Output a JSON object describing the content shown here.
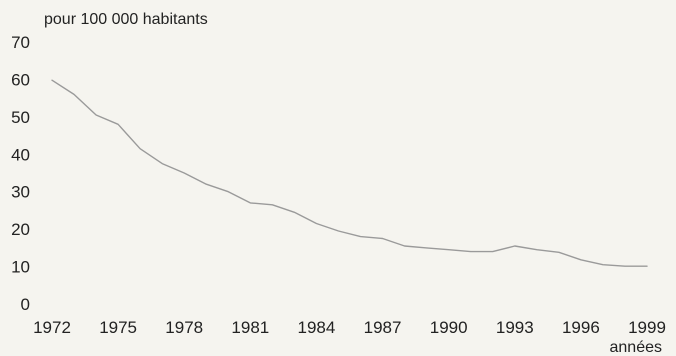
{
  "chart_data": {
    "type": "line",
    "title": "",
    "ylabel": "pour 100 000 habitants",
    "xlabel": "années",
    "xlim": [
      1972,
      1999
    ],
    "ylim": [
      0,
      70
    ],
    "x_ticks": [
      "1972",
      "1975",
      "1978",
      "1981",
      "1984",
      "1987",
      "1990",
      "1993",
      "1996",
      "1999"
    ],
    "y_ticks": [
      "0",
      "10",
      "20",
      "30",
      "40",
      "50",
      "60",
      "70"
    ],
    "grid": false,
    "line_color": "#9a9a9a",
    "series": [
      {
        "x": [
          1972,
          1973,
          1974,
          1975,
          1976,
          1977,
          1978,
          1979,
          1980,
          1981,
          1982,
          1983,
          1984,
          1985,
          1986,
          1987,
          1988,
          1989,
          1990,
          1991,
          1992,
          1993,
          1994,
          1995,
          1996,
          1997,
          1998,
          1999
        ],
        "values": [
          59.8,
          56,
          50.5,
          48,
          41.5,
          37.5,
          35,
          32,
          30,
          27,
          26.5,
          24.5,
          21.5,
          19.5,
          18,
          17.5,
          15.5,
          15,
          14.5,
          14,
          14,
          15.5,
          14.5,
          13.8,
          11.8,
          10.5,
          10.1,
          10.1
        ]
      }
    ]
  }
}
